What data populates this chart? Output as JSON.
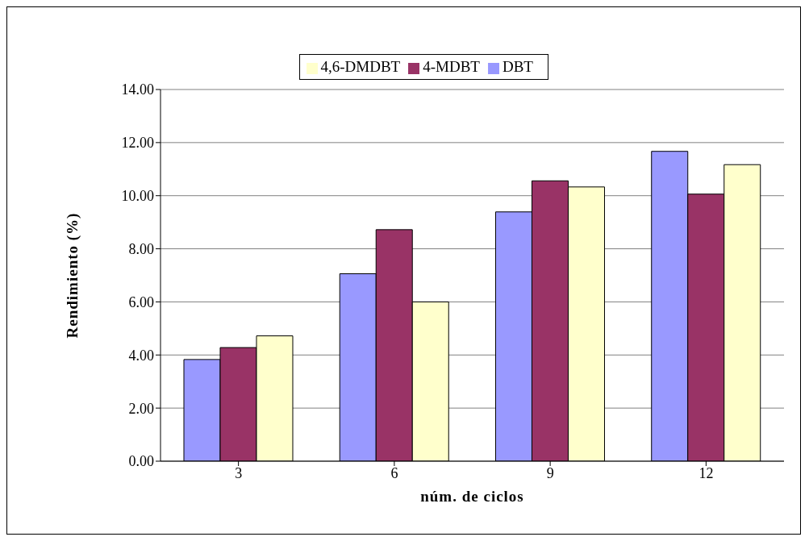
{
  "chart_data": {
    "type": "bar",
    "xlabel": "núm. de ciclos",
    "ylabel": "Rendimiento (%)",
    "categories": [
      "3",
      "6",
      "9",
      "12"
    ],
    "series": [
      {
        "name": "DBT",
        "color": "#9999ff",
        "values": [
          3.83,
          7.06,
          9.39,
          11.67
        ]
      },
      {
        "name": "4-MDBT",
        "color": "#993366",
        "values": [
          4.28,
          8.72,
          10.56,
          10.06
        ]
      },
      {
        "name": "4,6-DMDBT",
        "color": "#ffffcc",
        "values": [
          4.72,
          6.0,
          10.33,
          11.17
        ]
      }
    ],
    "ylim": [
      0,
      14
    ],
    "yticks": [
      {
        "value": 0,
        "label": "0.00"
      },
      {
        "value": 2,
        "label": "2.00"
      },
      {
        "value": 4,
        "label": "4.00"
      },
      {
        "value": 6,
        "label": "6.00"
      },
      {
        "value": 8,
        "label": "8.00"
      },
      {
        "value": 10,
        "label": "10.00"
      },
      {
        "value": 12,
        "label": "12.00"
      },
      {
        "value": 14,
        "label": "14.00"
      }
    ],
    "grid": "y",
    "legend": "top"
  }
}
